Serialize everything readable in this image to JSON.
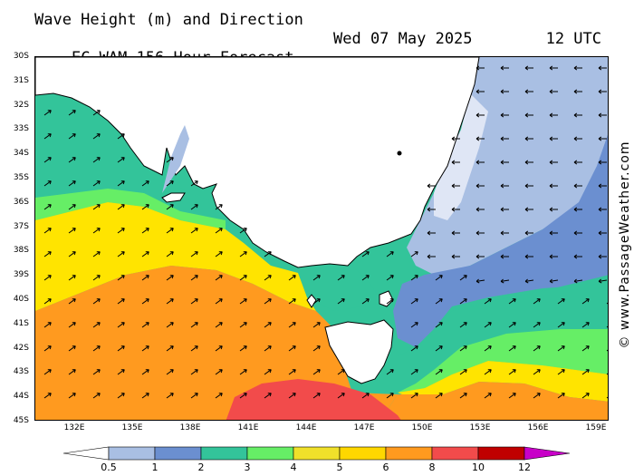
{
  "header": {
    "line1": "Wave Height (m) and Direction",
    "line2": "EC-WAM 156 Hour Forecast",
    "date": "Wed 07 May 2025",
    "time": "12 UTC"
  },
  "copyright": "© www.PassageWeather.com",
  "latitudes": [
    "30S",
    "31S",
    "32S",
    "33S",
    "34S",
    "35S",
    "36S",
    "37S",
    "38S",
    "39S",
    "40S",
    "41S",
    "42S",
    "43S",
    "44S",
    "45S"
  ],
  "longitudes": [
    "132E",
    "135E",
    "138E",
    "141E",
    "144E",
    "147E",
    "150E",
    "153E",
    "156E",
    "159E"
  ],
  "legend": {
    "labels": [
      "0.5",
      "1",
      "2",
      "3",
      "4",
      "5",
      "6",
      "8",
      "10",
      "12"
    ],
    "colors": [
      "#dfe6f5",
      "#a9bfe3",
      "#6b8fd0",
      "#33c49a",
      "#66ee66",
      "#f0e02a",
      "#ffd700",
      "#ff9a1f",
      "#f24b4b",
      "#c00000",
      "#c800c8"
    ]
  },
  "colors": {
    "land": "#ffffff",
    "h05_1": "#dfe6f5",
    "h1_2": "#a9bfe3",
    "h2_3": "#6b8fd0",
    "h3_4": "#33c49a",
    "h4_5": "#66ee66",
    "h5_6": "#ffe400",
    "h6_8": "#ff9a1f",
    "h8_10": "#f24b4b"
  }
}
